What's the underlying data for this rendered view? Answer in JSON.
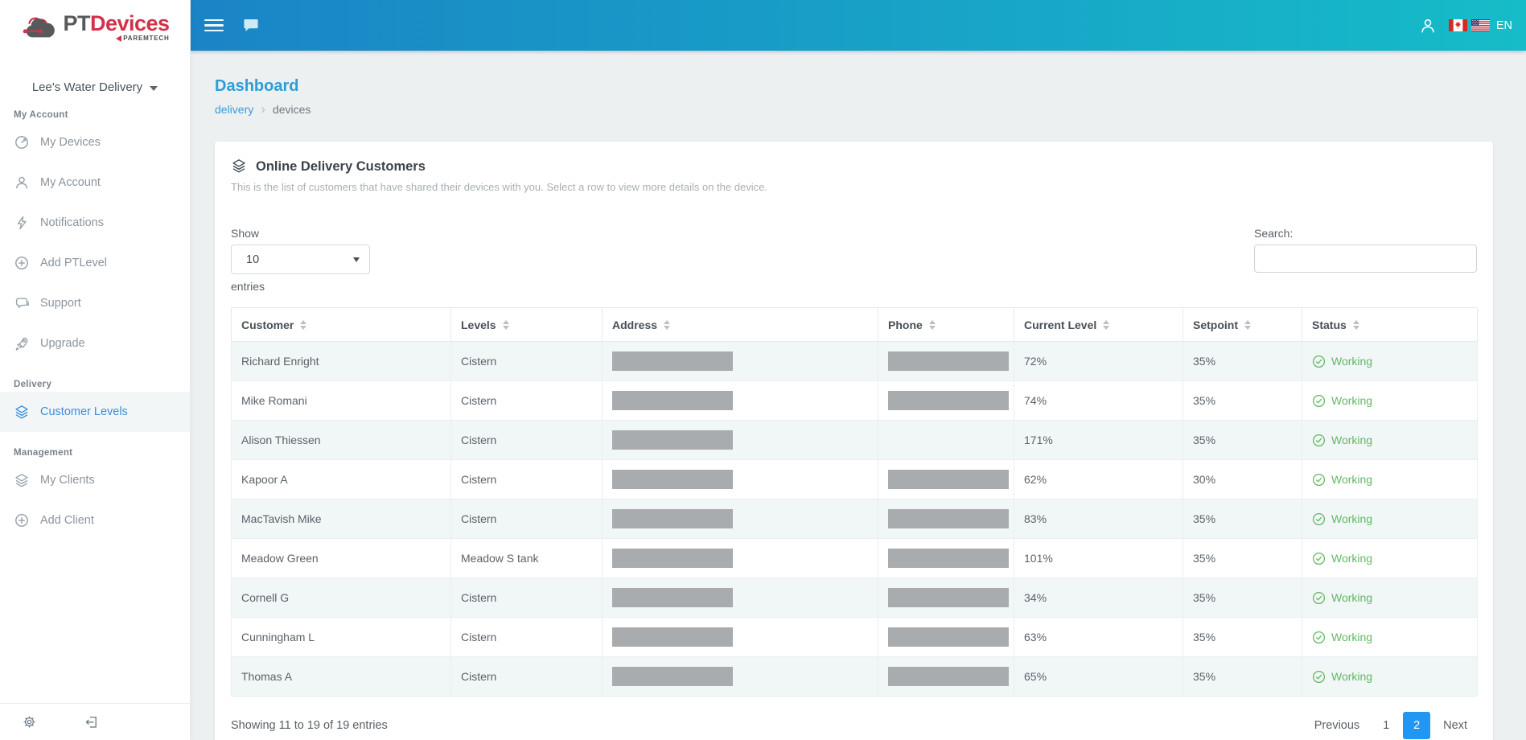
{
  "brand": {
    "pt": "PT",
    "devices": "Devices",
    "tagline": "PAREMTECH"
  },
  "topbar": {
    "language": "EN"
  },
  "sidebar": {
    "org_name": "Lee's Water Delivery",
    "sections": [
      {
        "label": "My Account",
        "items": [
          {
            "label": "My Devices",
            "icon": "gauge-icon"
          },
          {
            "label": "My Account",
            "icon": "user-icon"
          },
          {
            "label": "Notifications",
            "icon": "lightning-icon"
          },
          {
            "label": "Add PTLevel",
            "icon": "plus-circle-icon"
          },
          {
            "label": "Support",
            "icon": "chat-bubbles-icon"
          },
          {
            "label": "Upgrade",
            "icon": "rocket-icon"
          }
        ]
      },
      {
        "label": "Delivery",
        "items": [
          {
            "label": "Customer Levels",
            "icon": "layers-icon",
            "active": true
          }
        ]
      },
      {
        "label": "Management",
        "items": [
          {
            "label": "My Clients",
            "icon": "layers-icon"
          },
          {
            "label": "Add Client",
            "icon": "plus-circle-icon"
          }
        ]
      }
    ]
  },
  "page": {
    "title": "Dashboard",
    "breadcrumb": [
      "delivery",
      "devices"
    ]
  },
  "card": {
    "title": "Online Delivery Customers",
    "subtitle": "This is the list of customers that have shared their devices with you. Select a row to view more details on the device.",
    "show_label": "Show",
    "page_size": "10",
    "entries_label": "entries",
    "search_label": "Search:",
    "search_value": "",
    "table": {
      "columns": [
        "Customer",
        "Levels",
        "Address",
        "Phone",
        "Current Level",
        "Setpoint",
        "Status"
      ],
      "rows": [
        {
          "customer": "Richard Enright",
          "levels": "Cistern",
          "address_redacted": true,
          "phone_redacted": true,
          "current_level": "72%",
          "setpoint": "35%",
          "status": "Working"
        },
        {
          "customer": "Mike Romani",
          "levels": "Cistern",
          "address_redacted": true,
          "phone_redacted": true,
          "current_level": "74%",
          "setpoint": "35%",
          "status": "Working"
        },
        {
          "customer": "Alison Thiessen",
          "levels": "Cistern",
          "address_redacted": true,
          "phone_redacted": false,
          "current_level": "171%",
          "setpoint": "35%",
          "status": "Working"
        },
        {
          "customer": "Kapoor A",
          "levels": "Cistern",
          "address_redacted": true,
          "phone_redacted": true,
          "current_level": "62%",
          "setpoint": "30%",
          "status": "Working"
        },
        {
          "customer": "MacTavish Mike",
          "levels": "Cistern",
          "address_redacted": true,
          "phone_redacted": true,
          "current_level": "83%",
          "setpoint": "35%",
          "status": "Working"
        },
        {
          "customer": "Meadow Green",
          "levels": "Meadow S tank",
          "address_redacted": true,
          "phone_redacted": true,
          "current_level": "101%",
          "setpoint": "35%",
          "status": "Working"
        },
        {
          "customer": "Cornell G",
          "levels": "Cistern",
          "address_redacted": true,
          "phone_redacted": true,
          "current_level": "34%",
          "setpoint": "35%",
          "status": "Working"
        },
        {
          "customer": "Cunningham L",
          "levels": "Cistern",
          "address_redacted": true,
          "phone_redacted": true,
          "current_level": "63%",
          "setpoint": "35%",
          "status": "Working"
        },
        {
          "customer": "Thomas A",
          "levels": "Cistern",
          "address_redacted": true,
          "phone_redacted": true,
          "current_level": "65%",
          "setpoint": "35%",
          "status": "Working"
        }
      ]
    },
    "footer": {
      "info": "Showing 11 to 19 of 19 entries",
      "prev_label": "Previous",
      "pages": [
        "1",
        "2"
      ],
      "active_page": "2",
      "next_label": "Next"
    }
  },
  "colors": {
    "topbar_start": "#1a84c6",
    "topbar_end": "#16bcc8",
    "accent_blue": "#2d9dda",
    "pagination_active": "#2196f3",
    "status_green": "#61b961",
    "brand_red": "#d2314a"
  }
}
